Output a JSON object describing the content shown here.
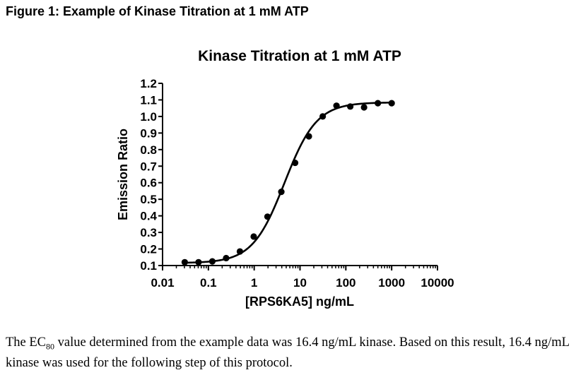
{
  "figure_heading": "Figure 1: Example of Kinase Titration at 1 mM ATP",
  "caption": {
    "before_sub": "The EC",
    "sub": "80",
    "after_sub": " value determined from the example data was 16.4 ng/mL kinase.  Based on this result, 16.4 ng/mL kinase was used for the following step of this protocol."
  },
  "chart_data": {
    "type": "scatter",
    "title": "Kinase Titration at 1 mM ATP",
    "xlabel": "[RPS6KA5] ng/mL",
    "ylabel": "Emission Ratio",
    "xscale": "log",
    "xlim": [
      0.01,
      10000
    ],
    "ylim": [
      0.1,
      1.2
    ],
    "xticks": [
      0.01,
      0.1,
      1,
      10,
      100,
      1000,
      10000
    ],
    "xtick_labels": [
      "0.01",
      "0.1",
      "1",
      "10",
      "100",
      "1000",
      "10000"
    ],
    "yticks": [
      0.1,
      0.2,
      0.3,
      0.4,
      0.5,
      0.6,
      0.7,
      0.8,
      0.9,
      1.0,
      1.1,
      1.2
    ],
    "ytick_labels": [
      "0.1",
      "0.2",
      "0.3",
      "0.4",
      "0.5",
      "0.6",
      "0.7",
      "0.8",
      "0.9",
      "1.0",
      "1.1",
      "1.2"
    ],
    "grid": false,
    "points": {
      "x": [
        0.0305,
        0.061,
        0.122,
        0.244,
        0.488,
        0.977,
        1.95,
        3.91,
        7.81,
        15.6,
        31.3,
        62.5,
        125,
        250,
        500,
        1000
      ],
      "y": [
        0.12,
        0.12,
        0.125,
        0.145,
        0.185,
        0.275,
        0.395,
        0.545,
        0.72,
        0.88,
        1.0,
        1.065,
        1.06,
        1.055,
        1.08,
        1.08
      ]
    },
    "fit": {
      "model": "sigmoidal dose-response",
      "bottom": 0.115,
      "top": 1.085,
      "ec50": 4.6,
      "hill": 1.24,
      "x_range": [
        0.0305,
        1000
      ]
    }
  }
}
